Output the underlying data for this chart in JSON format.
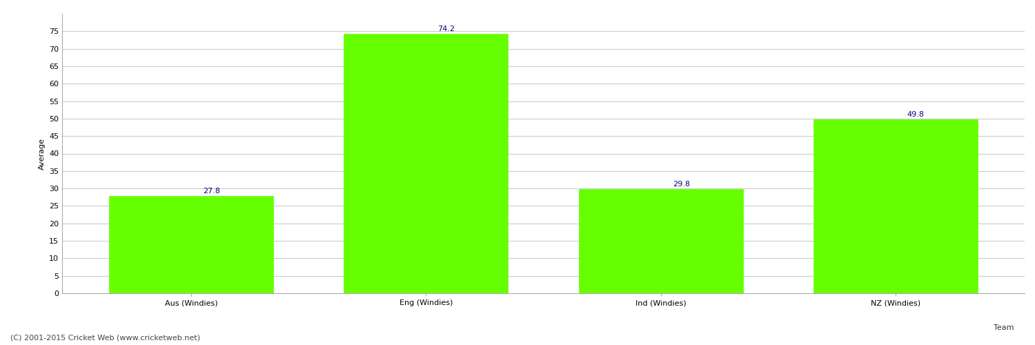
{
  "categories": [
    "Aus (Windies)",
    "Eng (Windies)",
    "Ind (Windies)",
    "NZ (Windies)"
  ],
  "values": [
    27.8,
    74.2,
    29.8,
    49.8
  ],
  "bar_color": "#66ff00",
  "bar_edge_color": "#66ff00",
  "xlabel": "Team",
  "ylabel": "Average",
  "ylim": [
    0,
    80
  ],
  "yticks": [
    0,
    5,
    10,
    15,
    20,
    25,
    30,
    35,
    40,
    45,
    50,
    55,
    60,
    65,
    70,
    75
  ],
  "annotation_color": "#00008B",
  "annotation_fontsize": 8,
  "grid_color": "#cccccc",
  "background_color": "#ffffff",
  "footer_text": "(C) 2001-2015 Cricket Web (www.cricketweb.net)",
  "footer_fontsize": 8,
  "footer_color": "#444444",
  "axis_label_fontsize": 8,
  "tick_fontsize": 8,
  "bar_width": 0.7
}
